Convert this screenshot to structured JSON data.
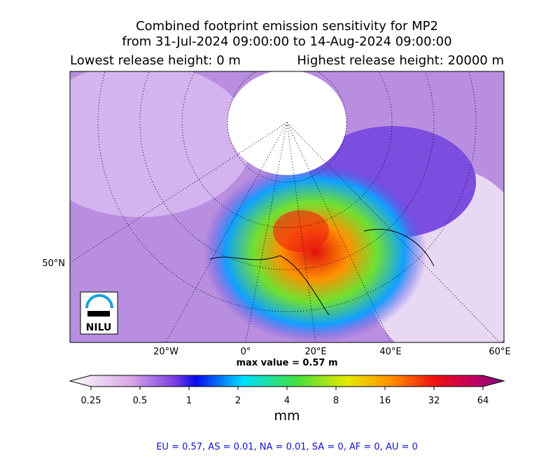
{
  "title": {
    "line1": "Combined footprint emission sensitivity for MP2",
    "line2": "from 31-Jul-2024 09:00:00 to 14-Aug-2024 09:00:00",
    "lowest": "Lowest release height: 0 m",
    "highest": "Highest release height: 20000 m"
  },
  "map": {
    "lat_labels": [
      "50°N"
    ],
    "lon_labels": [
      "20°W",
      "0°",
      "20°E",
      "40°E",
      "60°E"
    ],
    "logo": "NILU",
    "max_value": "max value = 0.57 m"
  },
  "colorbar": {
    "ticks": [
      "0.25",
      "0.5",
      "1",
      "2",
      "4",
      "8",
      "16",
      "32",
      "64"
    ],
    "unit": "mm"
  },
  "footer": "EU = 0.57,  AS = 0.01,  NA = 0.01,  SA = 0,  AF = 0,  AU = 0"
}
